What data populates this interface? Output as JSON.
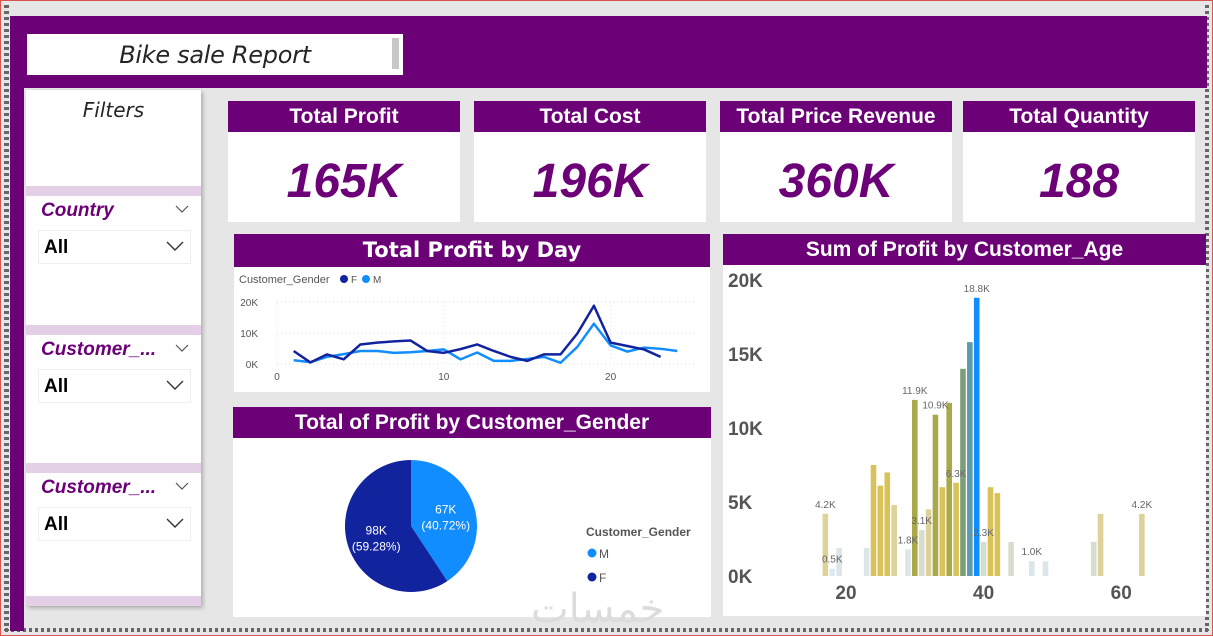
{
  "report": {
    "title": "Bike sale Report"
  },
  "filters": {
    "title": "Filters",
    "slicers": [
      {
        "label": "Country",
        "value": "All"
      },
      {
        "label": "Customer_...",
        "value": "All"
      },
      {
        "label": "Customer_...",
        "value": "All"
      }
    ]
  },
  "kpis": [
    {
      "label": "Total Profit",
      "value": "165K"
    },
    {
      "label": "Total Cost",
      "value": "196K"
    },
    {
      "label": "Total Price Revenue",
      "value": "360K"
    },
    {
      "label": "Total Quantity",
      "value": "188"
    }
  ],
  "colors": {
    "brand": "#6b0077",
    "female": "#12239e",
    "male": "#118dff"
  },
  "watermark": "خمسات",
  "chart_data": [
    {
      "type": "line",
      "title": "Total Profit by Day",
      "legend_title": "Customer_Gender",
      "legend_position": "top-left",
      "xlabel": "",
      "ylabel": "",
      "xlim": [
        0,
        25
      ],
      "ylim": [
        0,
        20000
      ],
      "x_ticks": [
        0,
        10,
        20
      ],
      "x_tick_labels": [
        "0",
        "10",
        "20"
      ],
      "y_ticks": [
        0,
        10000,
        20000
      ],
      "y_tick_labels": [
        "0K",
        "10K",
        "20K"
      ],
      "grid": true,
      "series": [
        {
          "name": "F",
          "x": [
            1,
            2,
            3,
            4,
            5,
            6,
            7,
            8,
            9,
            10,
            11,
            12,
            13,
            14,
            15,
            16,
            17,
            18,
            19,
            20,
            21,
            22,
            23
          ],
          "values": [
            4200,
            500,
            3100,
            1500,
            6300,
            6900,
            7300,
            7600,
            4200,
            3600,
            4800,
            6300,
            4200,
            2300,
            1000,
            3100,
            3100,
            9800,
            18800,
            6900,
            5800,
            4700,
            2300
          ]
        },
        {
          "name": "M",
          "x": [
            1,
            2,
            3,
            4,
            5,
            6,
            7,
            8,
            9,
            10,
            11,
            12,
            13,
            14,
            15,
            16,
            17,
            18,
            19,
            20,
            21,
            22,
            23,
            24
          ],
          "values": [
            1200,
            600,
            2300,
            3200,
            4200,
            4200,
            3600,
            3800,
            4200,
            4700,
            1500,
            3700,
            1000,
            1000,
            1600,
            2300,
            400,
            5500,
            13000,
            6000,
            4000,
            5300,
            4900,
            4200
          ]
        }
      ]
    },
    {
      "type": "pie",
      "title": "Total of Profit by Customer_Gender",
      "legend_title": "Customer_Gender",
      "legend_position": "right",
      "slices": [
        {
          "name": "M",
          "value": 67000,
          "label": "67K",
          "percent_label": "(40.72%)",
          "percent": 40.72
        },
        {
          "name": "F",
          "value": 98000,
          "label": "98K",
          "percent_label": "(59.28%)",
          "percent": 59.28
        }
      ]
    },
    {
      "type": "bar",
      "title": "Sum of Profit by Customer_Age",
      "xlabel": "",
      "ylabel": "",
      "xlim": [
        14,
        67
      ],
      "ylim": [
        0,
        20000
      ],
      "x_ticks": [
        20,
        40,
        60
      ],
      "x_tick_labels": [
        "20",
        "40",
        "60"
      ],
      "y_ticks": [
        0,
        5000,
        10000,
        15000,
        20000
      ],
      "y_tick_labels": [
        "0K",
        "5K",
        "10K",
        "15K",
        "20K"
      ],
      "grid": false,
      "categories": [
        17,
        18,
        19,
        23,
        24,
        25,
        26,
        27,
        29,
        30,
        31,
        32,
        33,
        34,
        35,
        36,
        37,
        38,
        39,
        40,
        41,
        42,
        44,
        47,
        49,
        56,
        57,
        63
      ],
      "values": [
        4200,
        500,
        1900,
        1900,
        7500,
        6100,
        7000,
        4800,
        1800,
        11900,
        3100,
        4500,
        10900,
        6000,
        11700,
        6300,
        14000,
        15800,
        18800,
        2300,
        6000,
        5600,
        2300,
        1000,
        1000,
        2300,
        4200,
        4200
      ],
      "data_labels": [
        {
          "age": 17,
          "label": "4.2K"
        },
        {
          "age": 18,
          "label": "0.5K"
        },
        {
          "age": 29,
          "label": "1.8K"
        },
        {
          "age": 30,
          "label": "11.9K"
        },
        {
          "age": 31,
          "label": "3.1K"
        },
        {
          "age": 33,
          "label": "10.9K"
        },
        {
          "age": 36,
          "label": "6.3K"
        },
        {
          "age": 39,
          "label": "18.8K"
        },
        {
          "age": 40,
          "label": "2.3K"
        },
        {
          "age": 47,
          "label": "1.0K"
        },
        {
          "age": 63,
          "label": "4.2K"
        }
      ]
    }
  ]
}
